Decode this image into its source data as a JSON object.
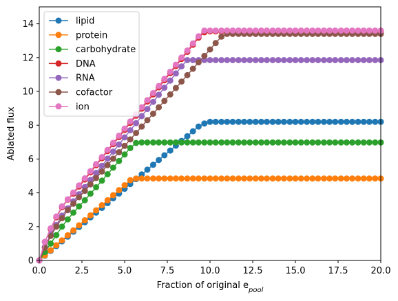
{
  "chart_data": {
    "type": "line",
    "title": "",
    "xlabel": "Fraction of original e",
    "xlabel_sub": "pool",
    "ylabel": "Ablated flux",
    "xlim": [
      0,
      20
    ],
    "ylim": [
      0,
      15
    ],
    "x_ticks": [
      "0.0",
      "2.5",
      "5.0",
      "7.5",
      "10.0",
      "12.5",
      "15.0",
      "17.5",
      "20.0"
    ],
    "y_ticks": [
      "0",
      "2",
      "4",
      "6",
      "8",
      "10",
      "12",
      "14"
    ],
    "grid": false,
    "legend_position": "upper-left",
    "marker": "circle",
    "x": [
      0.0,
      0.33,
      0.67,
      1.0,
      1.33,
      1.67,
      2.0,
      2.33,
      2.67,
      3.0,
      3.33,
      3.67,
      4.0,
      4.33,
      4.67,
      5.0,
      5.33,
      5.67,
      6.0,
      6.33,
      6.67,
      7.0,
      7.33,
      7.67,
      8.0,
      8.33,
      8.67,
      9.0,
      9.33,
      9.67,
      10.0,
      10.33,
      10.67,
      11.0,
      11.33,
      11.67,
      12.0,
      12.33,
      12.67,
      13.0,
      13.33,
      13.67,
      14.0,
      14.33,
      14.67,
      15.0,
      15.33,
      15.67,
      16.0,
      16.33,
      16.67,
      17.0,
      17.33,
      17.67,
      18.0,
      18.33,
      18.67,
      19.0,
      19.33,
      19.67,
      20.0
    ],
    "series": [
      {
        "name": "lipid",
        "color": "#1f77b4",
        "values": [
          0.0,
          0.28,
          0.57,
          0.85,
          1.13,
          1.41,
          1.7,
          1.98,
          2.26,
          2.55,
          2.83,
          3.11,
          3.39,
          3.68,
          3.96,
          4.24,
          4.52,
          4.81,
          5.09,
          5.37,
          5.66,
          5.94,
          6.22,
          6.5,
          6.79,
          7.07,
          7.35,
          7.64,
          7.92,
          8.1,
          8.2,
          8.2,
          8.2,
          8.2,
          8.2,
          8.2,
          8.2,
          8.2,
          8.2,
          8.2,
          8.2,
          8.2,
          8.2,
          8.2,
          8.2,
          8.2,
          8.2,
          8.2,
          8.2,
          8.2,
          8.2,
          8.2,
          8.2,
          8.2,
          8.2,
          8.2,
          8.2,
          8.2,
          8.2,
          8.2,
          8.2
        ]
      },
      {
        "name": "protein",
        "color": "#ff7f0e",
        "values": [
          0.0,
          0.3,
          0.6,
          0.9,
          1.19,
          1.49,
          1.78,
          2.08,
          2.38,
          2.67,
          2.97,
          3.27,
          3.56,
          3.86,
          4.16,
          4.45,
          4.75,
          4.85,
          4.85,
          4.85,
          4.85,
          4.85,
          4.85,
          4.85,
          4.85,
          4.85,
          4.85,
          4.85,
          4.85,
          4.85,
          4.85,
          4.85,
          4.85,
          4.85,
          4.85,
          4.85,
          4.85,
          4.85,
          4.85,
          4.85,
          4.85,
          4.85,
          4.85,
          4.85,
          4.85,
          4.85,
          4.85,
          4.85,
          4.85,
          4.85,
          4.85,
          4.85,
          4.85,
          4.85,
          4.85,
          4.85,
          4.85,
          4.85,
          4.85,
          4.85,
          4.85
        ]
      },
      {
        "name": "carbohydrate",
        "color": "#2ca02c",
        "values": [
          0.0,
          0.5,
          1.0,
          1.5,
          2.0,
          2.43,
          2.83,
          3.2,
          3.56,
          3.95,
          4.33,
          4.72,
          5.1,
          5.49,
          5.88,
          6.27,
          6.65,
          6.95,
          6.98,
          6.98,
          6.98,
          6.98,
          6.98,
          6.98,
          6.98,
          6.98,
          6.98,
          6.98,
          6.98,
          6.98,
          6.98,
          6.98,
          6.98,
          6.98,
          6.98,
          6.98,
          6.98,
          6.98,
          6.98,
          6.98,
          6.98,
          6.98,
          6.98,
          6.98,
          6.98,
          6.98,
          6.98,
          6.98,
          6.98,
          6.98,
          6.98,
          6.98,
          6.98,
          6.98,
          6.98,
          6.98,
          6.98,
          6.98,
          6.98,
          6.98,
          6.98
        ]
      },
      {
        "name": "DNA",
        "color": "#d62728",
        "values": [
          0.0,
          1.1,
          1.85,
          2.55,
          3.15,
          3.6,
          3.95,
          4.37,
          4.79,
          5.21,
          5.63,
          6.05,
          6.47,
          6.88,
          7.3,
          7.72,
          8.14,
          8.56,
          8.98,
          9.4,
          9.82,
          10.24,
          10.66,
          11.08,
          11.5,
          11.92,
          12.34,
          12.76,
          13.18,
          13.5,
          13.55,
          13.55,
          13.55,
          13.55,
          13.55,
          13.55,
          13.55,
          13.55,
          13.55,
          13.55,
          13.55,
          13.55,
          13.55,
          13.55,
          13.55,
          13.55,
          13.55,
          13.55,
          13.55,
          13.55,
          13.55,
          13.55,
          13.55,
          13.55,
          13.55,
          13.55,
          13.55,
          13.55,
          13.55,
          13.55,
          13.55
        ]
      },
      {
        "name": "RNA",
        "color": "#9467bd",
        "values": [
          0.0,
          0.8,
          1.55,
          2.1,
          2.65,
          3.08,
          3.5,
          3.92,
          4.34,
          4.76,
          5.18,
          5.6,
          6.02,
          6.44,
          6.86,
          7.28,
          7.7,
          8.12,
          8.54,
          8.96,
          9.38,
          9.8,
          10.22,
          10.64,
          11.06,
          11.48,
          11.85,
          11.85,
          11.85,
          11.85,
          11.85,
          11.85,
          11.85,
          11.85,
          11.85,
          11.85,
          11.85,
          11.85,
          11.85,
          11.85,
          11.85,
          11.85,
          11.85,
          11.85,
          11.85,
          11.85,
          11.85,
          11.85,
          11.85,
          11.85,
          11.85,
          11.85,
          11.85,
          11.85,
          11.85,
          11.85,
          11.85,
          11.85,
          11.85,
          11.85,
          11.85
        ]
      },
      {
        "name": "cofactor",
        "color": "#8c564b",
        "values": [
          0.0,
          0.75,
          1.45,
          2.0,
          2.5,
          2.98,
          3.36,
          3.74,
          4.12,
          4.5,
          4.88,
          5.26,
          5.64,
          6.02,
          6.4,
          6.78,
          7.16,
          7.54,
          7.92,
          8.3,
          8.68,
          9.06,
          9.44,
          9.82,
          10.2,
          10.58,
          10.96,
          11.34,
          11.72,
          12.1,
          12.48,
          12.86,
          13.24,
          13.4,
          13.4,
          13.4,
          13.4,
          13.4,
          13.4,
          13.4,
          13.4,
          13.4,
          13.4,
          13.4,
          13.4,
          13.4,
          13.4,
          13.4,
          13.4,
          13.4,
          13.4,
          13.4,
          13.4,
          13.4,
          13.4,
          13.4,
          13.4,
          13.4,
          13.4,
          13.4,
          13.4
        ]
      },
      {
        "name": "ion",
        "color": "#e377c2",
        "values": [
          0.0,
          1.1,
          1.9,
          2.6,
          3.2,
          3.62,
          4.02,
          4.44,
          4.86,
          5.28,
          5.7,
          6.12,
          6.54,
          6.96,
          7.38,
          7.8,
          8.22,
          8.64,
          9.06,
          9.48,
          9.9,
          10.32,
          10.74,
          11.16,
          11.58,
          12.0,
          12.42,
          12.84,
          13.26,
          13.6,
          13.6,
          13.6,
          13.6,
          13.6,
          13.6,
          13.6,
          13.6,
          13.6,
          13.6,
          13.6,
          13.6,
          13.6,
          13.6,
          13.6,
          13.6,
          13.6,
          13.6,
          13.6,
          13.6,
          13.6,
          13.6,
          13.6,
          13.6,
          13.6,
          13.6,
          13.6,
          13.6,
          13.6,
          13.6,
          13.6,
          13.6
        ]
      }
    ]
  }
}
